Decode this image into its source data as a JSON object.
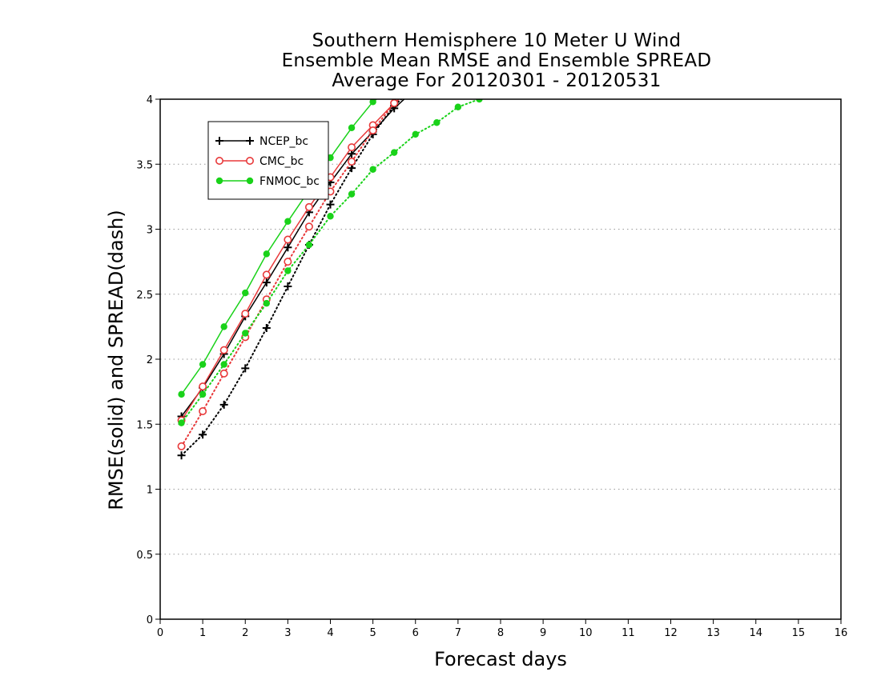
{
  "chart_data": {
    "type": "line",
    "title": [
      "Southern Hemisphere 10 Meter U Wind",
      "Ensemble Mean RMSE and Ensemble SPREAD",
      "Average For 20120301 - 20120531"
    ],
    "xlabel": "Forecast days",
    "ylabel": "RMSE(solid) and SPREAD(dash)",
    "xlim": [
      0,
      16
    ],
    "ylim": [
      0,
      4
    ],
    "xticks": [
      "0",
      "1",
      "2",
      "3",
      "4",
      "5",
      "6",
      "7",
      "8",
      "9",
      "10",
      "11",
      "12",
      "13",
      "14",
      "15",
      "16"
    ],
    "yticks": [
      "0",
      "0.5",
      "1",
      "1.5",
      "2",
      "2.5",
      "3",
      "3.5",
      "4"
    ],
    "grid": "horizontal dotted",
    "legend_position": "top-left",
    "series": [
      {
        "name": "NCEP_bc",
        "color": "#000000",
        "marker": "plus",
        "style": "solid",
        "x": [
          0.5,
          1,
          1.5,
          2,
          2.5,
          3,
          3.5,
          4,
          4.5,
          5,
          5.5,
          6
        ],
        "y": [
          1.56,
          1.78,
          2.04,
          2.33,
          2.59,
          2.86,
          3.13,
          3.36,
          3.58,
          3.75,
          3.93,
          4.08
        ]
      },
      {
        "name": "CMC_bc",
        "color": "#e8393a",
        "marker": "circle",
        "style": "solid",
        "x": [
          0.5,
          1,
          1.5,
          2,
          2.5,
          3,
          3.5,
          4,
          4.5,
          5,
          5.5,
          6
        ],
        "y": [
          1.53,
          1.79,
          2.07,
          2.35,
          2.65,
          2.92,
          3.17,
          3.4,
          3.63,
          3.8,
          3.97,
          4.1
        ]
      },
      {
        "name": "FNMOC_bc",
        "color": "#19d219",
        "marker": "dot",
        "style": "solid",
        "x": [
          0.5,
          1,
          1.5,
          2,
          2.5,
          3,
          3.5,
          4,
          4.5,
          5,
          5.5
        ],
        "y": [
          1.73,
          1.96,
          2.25,
          2.51,
          2.81,
          3.06,
          3.3,
          3.55,
          3.78,
          3.98,
          4.1
        ]
      },
      {
        "name": "NCEP_bc",
        "color": "#000000",
        "marker": "plus",
        "style": "dotted",
        "x": [
          0.5,
          1,
          1.5,
          2,
          2.5,
          3,
          3.5,
          4,
          4.5,
          5,
          5.5,
          6
        ],
        "y": [
          1.26,
          1.42,
          1.65,
          1.93,
          2.24,
          2.56,
          2.88,
          3.19,
          3.47,
          3.73,
          3.95,
          4.1
        ]
      },
      {
        "name": "CMC_bc",
        "color": "#e8393a",
        "marker": "circle",
        "style": "dotted",
        "x": [
          0.5,
          1,
          1.5,
          2,
          2.5,
          3,
          3.5,
          4,
          4.5,
          5,
          5.5,
          6
        ],
        "y": [
          1.33,
          1.6,
          1.89,
          2.17,
          2.46,
          2.75,
          3.02,
          3.29,
          3.52,
          3.76,
          3.97,
          4.1
        ]
      },
      {
        "name": "FNMOC_bc",
        "color": "#19d219",
        "marker": "dot",
        "style": "dotted",
        "x": [
          0.5,
          1,
          1.5,
          2,
          2.5,
          3,
          3.5,
          4,
          4.5,
          5,
          5.5,
          6,
          6.5,
          7,
          7.5,
          8
        ],
        "y": [
          1.51,
          1.73,
          1.96,
          2.2,
          2.43,
          2.68,
          2.88,
          3.1,
          3.27,
          3.46,
          3.59,
          3.73,
          3.82,
          3.94,
          4.0,
          4.05
        ]
      }
    ],
    "legend": [
      {
        "label": "NCEP_bc",
        "color": "#000000",
        "marker": "plus"
      },
      {
        "label": "CMC_bc",
        "color": "#e8393a",
        "marker": "circle"
      },
      {
        "label": "FNMOC_bc",
        "color": "#19d219",
        "marker": "dot"
      }
    ]
  }
}
